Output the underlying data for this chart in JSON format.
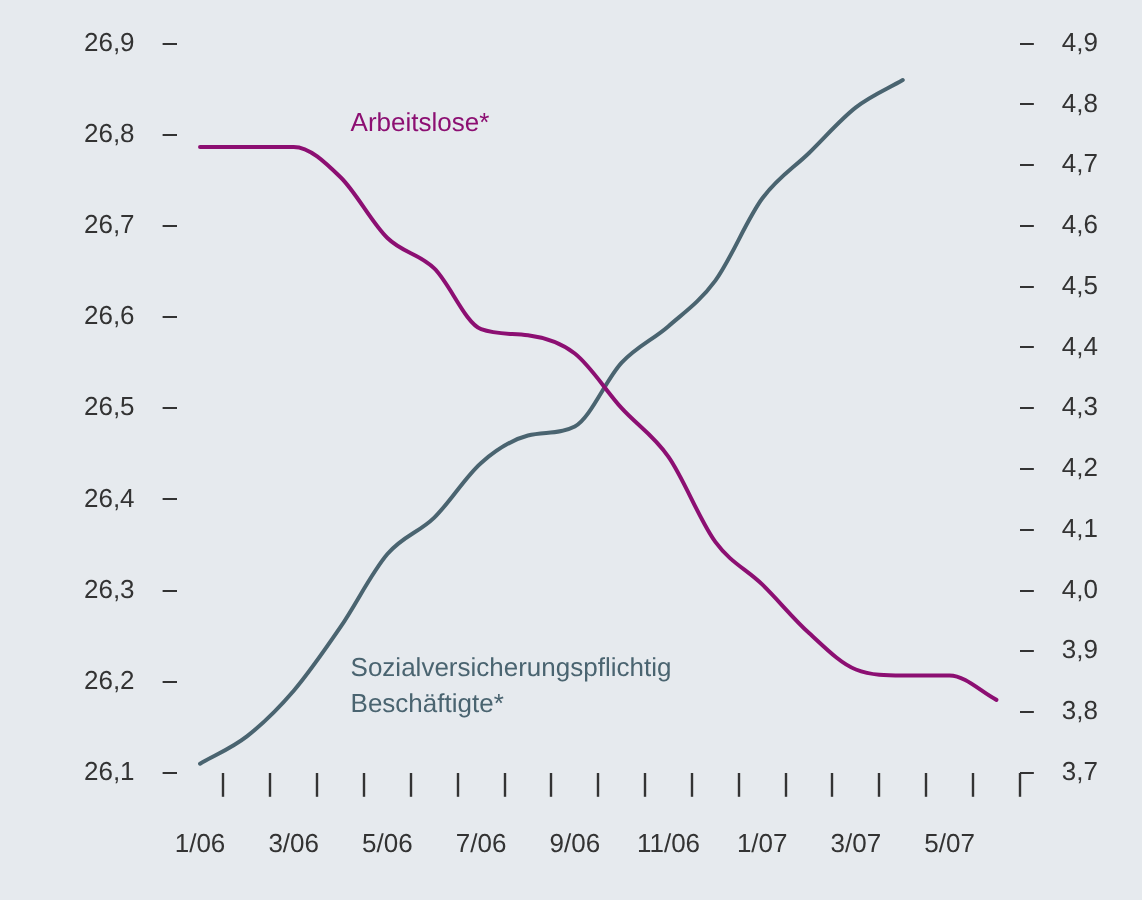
{
  "chart_data": {
    "type": "line",
    "categories": [
      "1/06",
      null,
      "3/06",
      null,
      "5/06",
      null,
      "7/06",
      null,
      "9/06",
      null,
      "11/06",
      null,
      "1/07",
      null,
      "3/07",
      null,
      "5/07",
      null
    ],
    "series": [
      {
        "name": "Arbeitslose*",
        "color": "#8c0f72",
        "axis": "y2",
        "values": [
          4.73,
          4.73,
          4.73,
          4.68,
          4.58,
          4.53,
          4.43,
          4.42,
          4.39,
          4.3,
          4.22,
          4.08,
          4.01,
          3.93,
          3.87,
          3.86,
          3.86,
          3.82
        ]
      },
      {
        "name": "Sozialversicherungspflichtig Beschäftigte*",
        "color": "#4a6470",
        "axis": "y",
        "values": [
          26.11,
          26.14,
          26.19,
          26.26,
          26.34,
          26.38,
          26.44,
          26.47,
          26.48,
          26.55,
          26.59,
          26.64,
          26.73,
          26.78,
          26.83,
          26.86,
          null,
          null
        ]
      }
    ],
    "ylim": [
      26.1,
      26.9
    ],
    "yticks": [
      {
        "value": 26.1,
        "label": "26,1"
      },
      {
        "value": 26.2,
        "label": "26,2"
      },
      {
        "value": 26.3,
        "label": "26,3"
      },
      {
        "value": 26.4,
        "label": "26,4"
      },
      {
        "value": 26.5,
        "label": "26,5"
      },
      {
        "value": 26.6,
        "label": "26,6"
      },
      {
        "value": 26.7,
        "label": "26,7"
      },
      {
        "value": 26.8,
        "label": "26,8"
      },
      {
        "value": 26.9,
        "label": "26,9"
      }
    ],
    "y2lim": [
      3.7,
      4.9
    ],
    "y2ticks": [
      {
        "value": 3.7,
        "label": "3,7"
      },
      {
        "value": 3.8,
        "label": "3,8"
      },
      {
        "value": 3.9,
        "label": "3,9"
      },
      {
        "value": 4.0,
        "label": "4,0"
      },
      {
        "value": 4.1,
        "label": "4,1"
      },
      {
        "value": 4.2,
        "label": "4,2"
      },
      {
        "value": 4.3,
        "label": "4,3"
      },
      {
        "value": 4.4,
        "label": "4,4"
      },
      {
        "value": 4.5,
        "label": "4,5"
      },
      {
        "value": 4.6,
        "label": "4,6"
      },
      {
        "value": 4.7,
        "label": "4,7"
      },
      {
        "value": 4.8,
        "label": "4,8"
      },
      {
        "value": 4.9,
        "label": "4,9"
      }
    ],
    "grid": false,
    "legend": false,
    "marker": "none",
    "line_style": "solid"
  }
}
